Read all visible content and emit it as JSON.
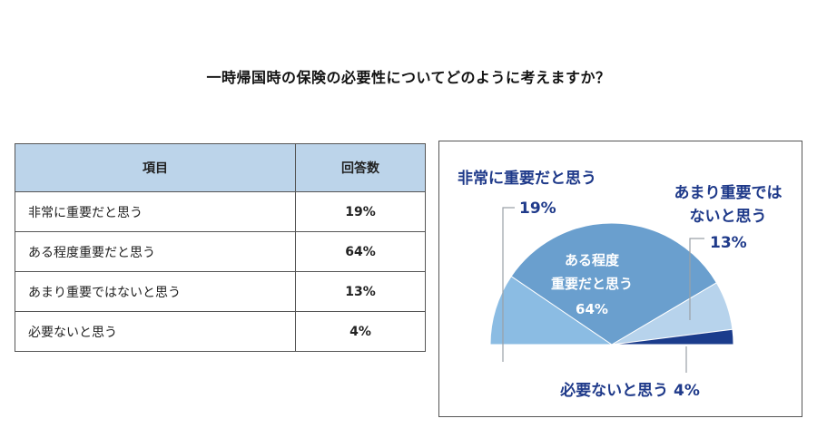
{
  "title": "一時帰国時の保険の必要性についてどのように考えますか？",
  "table": {
    "headers": [
      "項目",
      "回答数"
    ],
    "rows": [
      [
        "非常に重要だと思う",
        "19%"
      ],
      [
        "ある程度重要だと思う",
        "64%"
      ],
      [
        "あまり重要ではないと思う",
        "13%"
      ],
      [
        "必要ないと思う",
        "4%"
      ]
    ]
  },
  "chart_data": {
    "type": "pie",
    "categories": [
      "非常に重要だと思う",
      "ある程度重要だと思う",
      "あまり重要ではないと思う",
      "必要ないと思う"
    ],
    "values": [
      19,
      64,
      13,
      4
    ],
    "unit": "%",
    "colors": [
      "#8bbce3",
      "#6a9fce",
      "#b7d3ec",
      "#1b3c8c"
    ],
    "label_color": "#1f3a8a",
    "labels": [
      {
        "lines": [
          "非常に重要だと思う"
        ],
        "value": "19%"
      },
      {
        "lines": [
          "ある程度",
          "重要だと思う"
        ],
        "value": "64%"
      },
      {
        "lines": [
          "あまり重要では",
          "ないと思う"
        ],
        "value": "13%"
      },
      {
        "lines": [
          "必要ないと思う"
        ],
        "value": "4%"
      }
    ]
  }
}
